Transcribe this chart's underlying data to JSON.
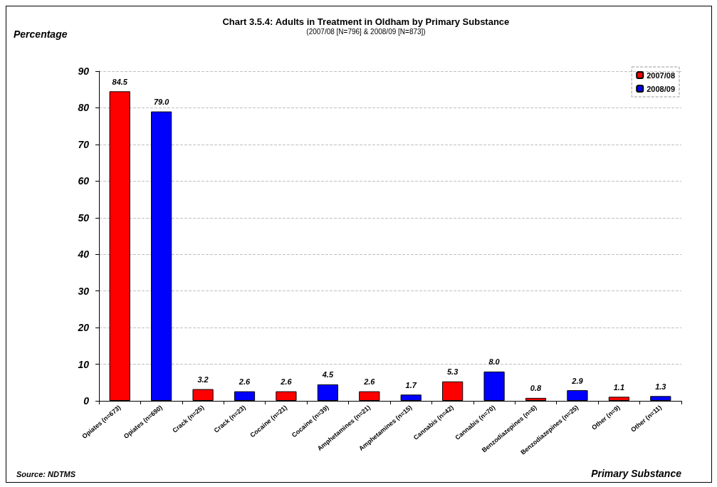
{
  "chart_data": {
    "type": "bar",
    "title": "Chart 3.5.4: Adults in Treatment in Oldham by Primary Substance",
    "subtitle": "(2007/08 [N=796] & 2008/09 [N=873])",
    "xlabel": "Primary Substance",
    "ylabel": "Percentage",
    "annotations": [
      "Source: NDTMS"
    ],
    "categories": [
      "Opiates (n=673)",
      "Opiates (n=690)",
      "Crack (n=25)",
      "Crack (n=23)",
      "Cocaine (n=21)",
      "Cocaine (n=39)",
      "Amphetamines (n=21)",
      "Amphetamines (n=15)",
      "Cannabis (n=42)",
      "Cannabis (n=70)",
      "Benzodiazepines (n=6)",
      "Benzodiazepines (n=25)",
      "Other (n=9)",
      "Other (n=11)"
    ],
    "series": [
      {
        "name": "2007/08",
        "color": "#ff0000",
        "values": [
          84.5,
          null,
          3.2,
          null,
          2.6,
          null,
          2.6,
          null,
          5.3,
          null,
          0.8,
          null,
          1.1,
          null
        ],
        "value_labels": [
          "84.5",
          null,
          "3.2",
          null,
          "2.6",
          null,
          "2.6",
          null,
          "5.3",
          null,
          "0.8",
          null,
          "1.1",
          null
        ]
      },
      {
        "name": "2008/09",
        "color": "#0000ff",
        "values": [
          null,
          79.0,
          null,
          2.6,
          null,
          4.5,
          null,
          1.7,
          null,
          8.0,
          null,
          2.9,
          null,
          1.3
        ],
        "value_labels": [
          null,
          "79.0",
          null,
          "2.6",
          null,
          "4.5",
          null,
          "1.7",
          null,
          "8.0",
          null,
          "2.9",
          null,
          "1.3"
        ]
      }
    ],
    "ylim": [
      0,
      90
    ],
    "yticks": [
      0,
      10,
      20,
      30,
      40,
      50,
      60,
      70,
      80,
      90
    ],
    "grid": "y",
    "legend": "top right"
  }
}
